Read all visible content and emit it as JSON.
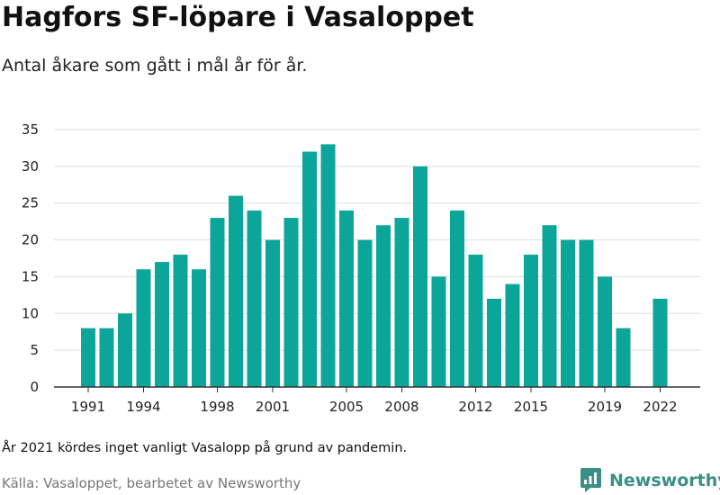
{
  "title": "Hagfors SF-löpare i Vasaloppet",
  "subtitle": "Antal åkare som gått i mål år för år.",
  "note": "År 2021 kördes inget vanligt Vasalopp på grund av pandemin.",
  "source": "Källa: Vasaloppet, bearbetet av Newsworthy",
  "brand": {
    "name": "Newsworthy",
    "logo_icon": "newsworthy-logo-icon",
    "logo_color": "#3a8f86"
  },
  "colors": {
    "bar": "#0ca59a",
    "grid": "#dddddd",
    "axis": "#333333"
  },
  "chart_data": {
    "type": "bar",
    "title": "",
    "xlabel": "",
    "ylabel": "",
    "ylim": [
      0,
      35
    ],
    "yticks": [
      0,
      5,
      10,
      15,
      20,
      25,
      30,
      35
    ],
    "xticks": [
      "1991",
      "1994",
      "1998",
      "2001",
      "2005",
      "2008",
      "2012",
      "2015",
      "2019",
      "2022"
    ],
    "grid": true,
    "categories": [
      "1991",
      "1992",
      "1993",
      "1994",
      "1995",
      "1996",
      "1997",
      "1998",
      "1999",
      "2000",
      "2001",
      "2002",
      "2003",
      "2004",
      "2005",
      "2006",
      "2007",
      "2008",
      "2009",
      "2010",
      "2011",
      "2012",
      "2013",
      "2014",
      "2015",
      "2016",
      "2017",
      "2018",
      "2019",
      "2020",
      "2021",
      "2022"
    ],
    "values": [
      8,
      8,
      10,
      16,
      17,
      18,
      16,
      23,
      26,
      24,
      20,
      23,
      32,
      33,
      24,
      20,
      22,
      23,
      30,
      15,
      24,
      18,
      12,
      14,
      18,
      22,
      20,
      20,
      15,
      8,
      0,
      12
    ]
  }
}
